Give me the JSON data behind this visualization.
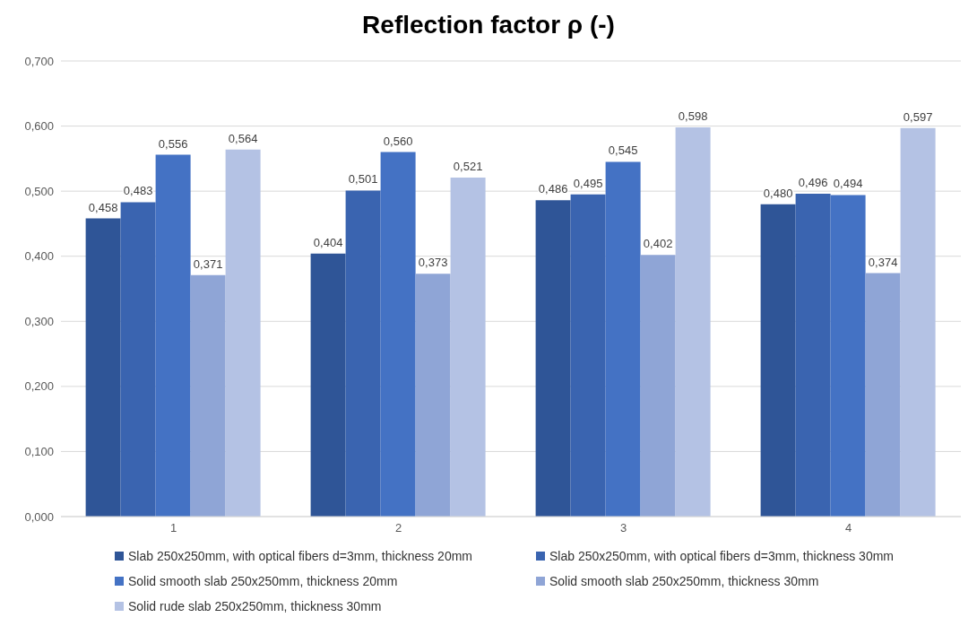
{
  "chart_data": {
    "type": "bar",
    "title": "Reflection factor ρ (-)",
    "categories": [
      "1",
      "2",
      "3",
      "4"
    ],
    "series": [
      {
        "name": "Slab 250x250mm, with optical fibers d=3mm, thickness 20mm",
        "color": "#2f5597",
        "values": [
          0.458,
          0.404,
          0.486,
          0.48
        ],
        "value_labels": [
          "0,458",
          "0,404",
          "0,486",
          "0,480"
        ]
      },
      {
        "name": "Slab 250x250mm, with optical fibers d=3mm, thickness 30mm",
        "color": "#3a64b0",
        "values": [
          0.483,
          0.501,
          0.495,
          0.496
        ],
        "value_labels": [
          "0,483",
          "0,501",
          "0,495",
          "0,496"
        ]
      },
      {
        "name": "Solid smooth slab 250x250mm, thickness 20mm",
        "color": "#4472c4",
        "values": [
          0.556,
          0.56,
          0.545,
          0.494
        ],
        "value_labels": [
          "0,556",
          "0,560",
          "0,545",
          "0,494"
        ]
      },
      {
        "name": "Solid smooth slab 250x250mm, thickness 30mm",
        "color": "#8fa5d6",
        "values": [
          0.371,
          0.373,
          0.402,
          0.374
        ],
        "value_labels": [
          "0,371",
          "0,373",
          "0,402",
          "0,374"
        ]
      },
      {
        "name": "Solid rude slab 250x250mm, thickness 30mm",
        "color": "#b4c2e4",
        "values": [
          0.564,
          0.521,
          0.598,
          0.597
        ],
        "value_labels": [
          "0,564",
          "0,521",
          "0,598",
          "0,597"
        ]
      }
    ],
    "ylim": [
      0,
      0.7
    ],
    "yticks": [
      {
        "value": 0,
        "label": "0,000"
      },
      {
        "value": 0.1,
        "label": "0,100"
      },
      {
        "value": 0.2,
        "label": "0,200"
      },
      {
        "value": 0.3,
        "label": "0,300"
      },
      {
        "value": 0.4,
        "label": "0,400"
      },
      {
        "value": 0.5,
        "label": "0,500"
      },
      {
        "value": 0.6,
        "label": "0,600"
      },
      {
        "value": 0.7,
        "label": "0,700"
      }
    ],
    "grid": "y",
    "legend": "bottom"
  }
}
